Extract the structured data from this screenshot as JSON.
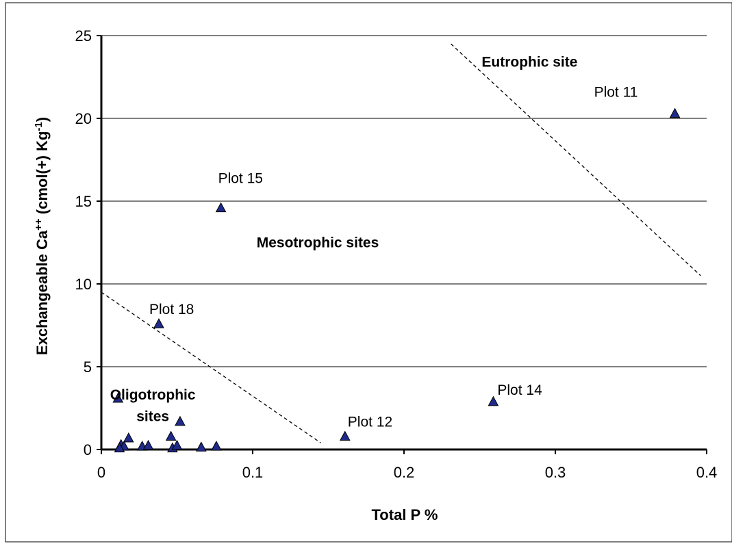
{
  "chart_data": {
    "type": "scatter",
    "xlabel": "Total P %",
    "ylabel": {
      "main": "Exchangeable Ca",
      "sup1": "++",
      "units": " (cmol(+) Kg",
      "sup2": "-1",
      "close": ")"
    },
    "xlim": [
      0,
      0.4
    ],
    "ylim": [
      0,
      25
    ],
    "x_ticks": [
      0,
      0.1,
      0.2,
      0.3,
      0.4
    ],
    "x_tick_labels": [
      "0",
      "0.1",
      "0.2",
      "0.3",
      "0.4"
    ],
    "y_ticks": [
      0,
      5,
      10,
      15,
      20,
      25
    ],
    "y_tick_labels": [
      "0",
      "5",
      "10",
      "15",
      "20",
      "25"
    ],
    "horizontal_gridlines": true,
    "marker": "triangle",
    "marker_color": "#1f2a8a",
    "points": [
      {
        "x": 0.379,
        "y": 20.3
      },
      {
        "x": 0.079,
        "y": 14.6
      },
      {
        "x": 0.038,
        "y": 7.6
      },
      {
        "x": 0.259,
        "y": 2.9
      },
      {
        "x": 0.161,
        "y": 0.8
      },
      {
        "x": 0.011,
        "y": 3.1
      },
      {
        "x": 0.052,
        "y": 1.7
      },
      {
        "x": 0.046,
        "y": 0.8
      },
      {
        "x": 0.018,
        "y": 0.7
      },
      {
        "x": 0.013,
        "y": 0.3
      },
      {
        "x": 0.015,
        "y": 0.2
      },
      {
        "x": 0.012,
        "y": 0.1
      },
      {
        "x": 0.027,
        "y": 0.2
      },
      {
        "x": 0.031,
        "y": 0.25
      },
      {
        "x": 0.047,
        "y": 0.1
      },
      {
        "x": 0.05,
        "y": 0.25
      },
      {
        "x": 0.066,
        "y": 0.15
      },
      {
        "x": 0.076,
        "y": 0.2
      }
    ],
    "point_labels": [
      {
        "text": "Plot 11",
        "x": 0.379,
        "y": 20.3
      },
      {
        "text": "Plot 15",
        "x": 0.079,
        "y": 14.6
      },
      {
        "text": "Plot 18",
        "x": 0.038,
        "y": 7.6
      },
      {
        "text": "Plot 14",
        "x": 0.259,
        "y": 2.9
      },
      {
        "text": "Plot 12",
        "x": 0.161,
        "y": 0.8
      }
    ],
    "boundary_lines": [
      {
        "x1": 0.0,
        "y1": 9.5,
        "x2": 0.145,
        "y2": 0.4
      },
      {
        "x1": 0.231,
        "y1": 24.5,
        "x2": 0.396,
        "y2": 10.5
      }
    ],
    "region_labels": [
      {
        "text": "Eutrophic site",
        "x": 0.283,
        "y": 23.4
      },
      {
        "text": "Mesotrophic sites",
        "x": 0.143,
        "y": 12.5
      },
      {
        "text": "Oligotrophic",
        "x": 0.034,
        "y": 3.3
      },
      {
        "text": "sites",
        "x": 0.034,
        "y": 2.0
      }
    ]
  }
}
